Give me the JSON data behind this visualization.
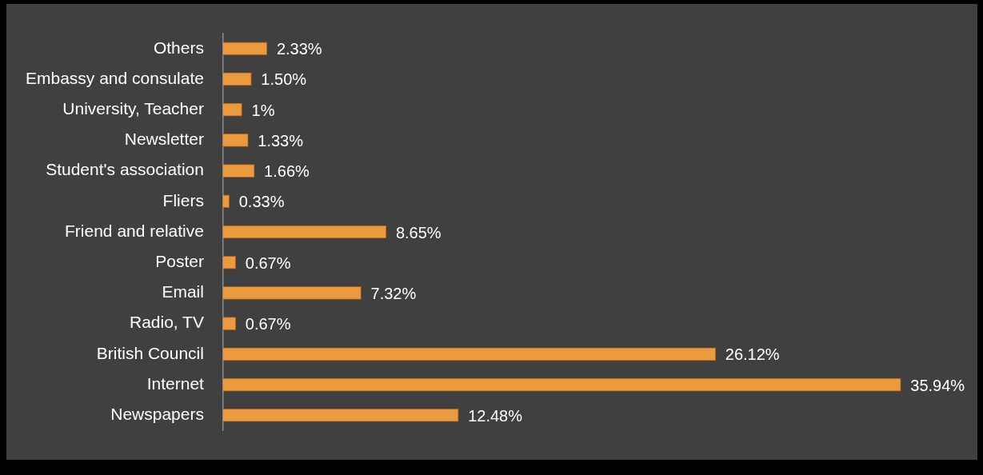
{
  "chart_data": {
    "type": "bar",
    "orientation": "horizontal",
    "categories": [
      "Others",
      "Embassy and consulate",
      "University, Teacher",
      "Newsletter",
      "Student's association",
      "Fliers",
      "Friend and relative",
      "Poster",
      "Email",
      "Radio, TV",
      "British Council",
      "Internet",
      "Newspapers"
    ],
    "values": [
      2.33,
      1.5,
      1,
      1.33,
      1.66,
      0.33,
      8.65,
      0.67,
      7.32,
      0.67,
      26.12,
      35.94,
      12.48
    ],
    "value_labels": [
      "2.33%",
      "1.50%",
      "1%",
      "1.33%",
      "1.66%",
      "0.33%",
      "8.65%",
      "0.67%",
      "7.32%",
      "0.67%",
      "26.12%",
      "35.94%",
      "12.48%"
    ],
    "color": "#ec9a3e",
    "xlim": [
      0,
      40
    ],
    "tick_labels": "y",
    "grid": false,
    "legend": false
  }
}
